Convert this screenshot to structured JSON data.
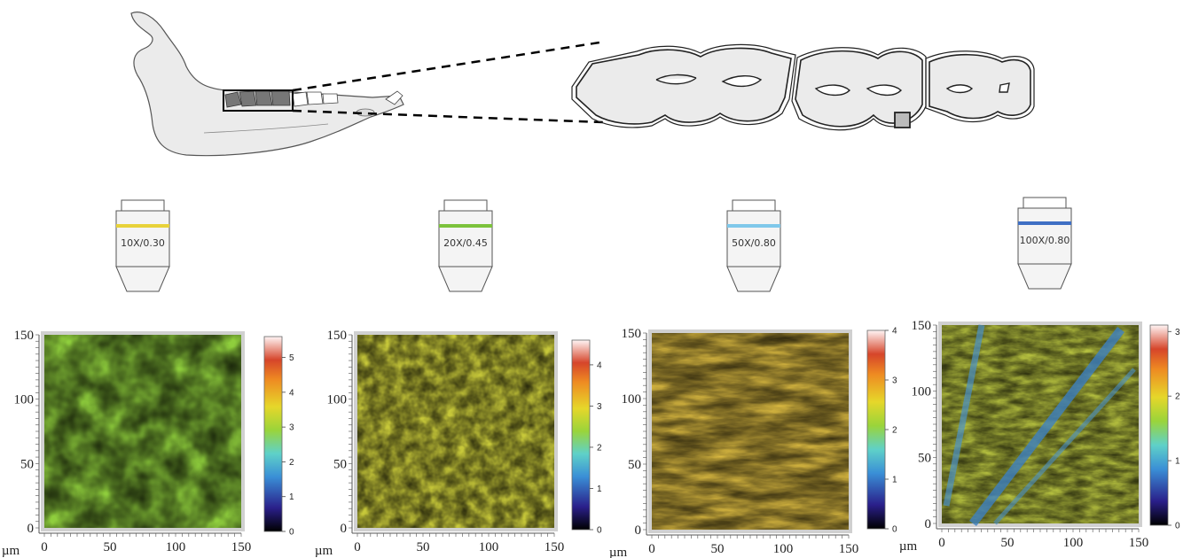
{
  "top_illustration": {
    "jaw": "mandible-drawing",
    "molars": "molar-row-drawing"
  },
  "objectives": [
    {
      "label": "10X/0.30",
      "ring_color": "#e8d23a"
    },
    {
      "label": "20X/0.45",
      "ring_color": "#7cc23c"
    },
    {
      "label": "50X/0.80",
      "ring_color": "#7fc8ea"
    },
    {
      "label": "100X/0.80",
      "ring_color": "#3f6fc4"
    }
  ],
  "panels": [
    {
      "unit": "µm",
      "y_ticks": [
        "150",
        "100",
        "50",
        "0"
      ],
      "x_ticks": [
        "0",
        "50",
        "100",
        "150"
      ],
      "colorbar_ticks": [
        "5",
        "4",
        "3",
        "2",
        "1",
        "0"
      ],
      "colorbar_max": 5.6
    },
    {
      "unit": "µm",
      "y_ticks": [
        "150",
        "100",
        "50",
        "0"
      ],
      "x_ticks": [
        "0",
        "50",
        "100",
        "150"
      ],
      "colorbar_ticks": [
        "4",
        "3",
        "2",
        "1",
        "0"
      ],
      "colorbar_max": 4.6
    },
    {
      "unit": "µm",
      "y_ticks": [
        "150",
        "100",
        "50",
        "0"
      ],
      "x_ticks": [
        "0",
        "50",
        "100",
        "150"
      ],
      "colorbar_ticks": [
        "4",
        "3",
        "2",
        "1",
        "0"
      ],
      "colorbar_max": 4.0
    },
    {
      "unit": "µm",
      "y_ticks": [
        "150",
        "100",
        "50",
        "0"
      ],
      "x_ticks": [
        "0",
        "50",
        "100",
        "150"
      ],
      "colorbar_ticks": [
        "3",
        "2",
        "1",
        "0"
      ],
      "colorbar_max": 3.1
    }
  ]
}
